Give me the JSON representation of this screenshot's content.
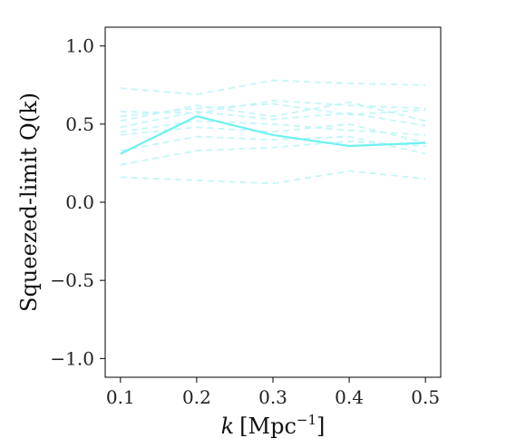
{
  "chart_data": {
    "type": "line",
    "xlabel_var": "k",
    "xlabel_unit": "[Mpc",
    "xlabel_exp": "−1",
    "xlabel_close": "]",
    "ylabel": "Squeezed-limit Q(k)",
    "xlim": [
      0.08,
      0.52
    ],
    "ylim": [
      -1.12,
      1.12
    ],
    "x": [
      0.1,
      0.2,
      0.3,
      0.4,
      0.5
    ],
    "x_tick_labels": [
      "0.1",
      "0.2",
      "0.3",
      "0.4",
      "0.5"
    ],
    "y_ticks": [
      1.0,
      0.5,
      0.0,
      -0.5,
      -1.0
    ],
    "y_tick_labels": [
      "1.0",
      "0.5",
      "0.0",
      "−0.5",
      "−1.0"
    ],
    "grid": false,
    "line_color": "#6ff0f0",
    "dashed_color": "#c4f6f8",
    "series": [
      {
        "style": "solid",
        "values": [
          0.31,
          0.55,
          0.43,
          0.36,
          0.38
        ]
      },
      {
        "style": "dashed",
        "values": [
          0.73,
          0.69,
          0.78,
          0.76,
          0.75
        ]
      },
      {
        "style": "dashed",
        "values": [
          0.58,
          0.57,
          0.65,
          0.62,
          0.6
        ]
      },
      {
        "style": "dashed",
        "values": [
          0.55,
          0.6,
          0.63,
          0.56,
          0.59
        ]
      },
      {
        "style": "dashed",
        "values": [
          0.52,
          0.62,
          0.55,
          0.64,
          0.52
        ]
      },
      {
        "style": "dashed",
        "values": [
          0.48,
          0.58,
          0.53,
          0.57,
          0.49
        ]
      },
      {
        "style": "dashed",
        "values": [
          0.45,
          0.52,
          0.5,
          0.46,
          0.43
        ]
      },
      {
        "style": "dashed",
        "values": [
          0.43,
          0.48,
          0.45,
          0.5,
          0.38
        ]
      },
      {
        "style": "dashed",
        "values": [
          0.33,
          0.42,
          0.4,
          0.42,
          0.31
        ]
      },
      {
        "style": "dashed",
        "values": [
          0.24,
          0.33,
          0.35,
          0.39,
          0.36
        ]
      },
      {
        "style": "dashed",
        "values": [
          0.16,
          0.14,
          0.12,
          0.2,
          0.15
        ]
      }
    ]
  }
}
